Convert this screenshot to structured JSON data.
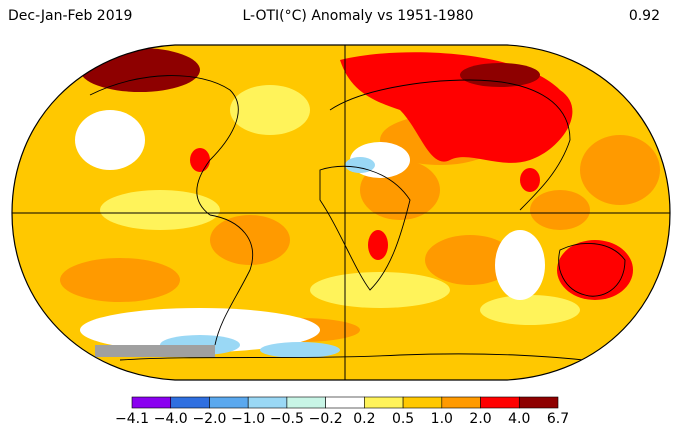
{
  "header": {
    "period": "Dec-Jan-Feb 2019",
    "title": "L-OTI(°C) Anomaly vs 1951-1980",
    "global_mean": "0.92"
  },
  "legend": {
    "labels": [
      "−4.1",
      "−4.0",
      "−2.0",
      "−1.0",
      "−0.5",
      "−0.2",
      "0.2",
      "0.5",
      "1.0",
      "2.0",
      "4.0",
      "6.7"
    ],
    "colors": [
      "#8a00f0",
      "#2f6fe0",
      "#5aa8ee",
      "#9ad8f5",
      "#c8f5e6",
      "#ffffff",
      "#fff35a",
      "#ffc800",
      "#ff9a00",
      "#ff0000",
      "#8e0000"
    ]
  }
}
